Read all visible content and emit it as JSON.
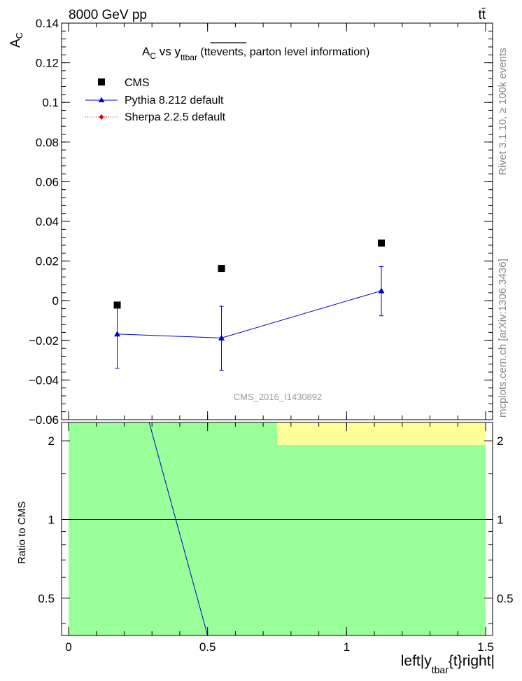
{
  "header": {
    "energy_label": "8000 GeV pp",
    "process_label": "tt̄"
  },
  "side_labels": {
    "rivet": "Rivet 3.1.10, ≥ 100k events",
    "mcplots": "mcplots.cern.ch [arXiv:1306.3436]"
  },
  "watermark": "CMS_2016_I1430892",
  "title": {
    "main": "A",
    "main_sub": "C",
    "vs": " vs y",
    "vs_sub": "ttbar",
    "paren_open": " (tt",
    "overlined": "events,",
    "paren_rest": " parton level information)"
  },
  "yaxis": {
    "label": "A",
    "label_sub": "C"
  },
  "ratio_yaxis_label": "Ratio to CMS",
  "xaxis": {
    "label_a": "left|y",
    "label_sub": "tbar",
    "label_b": "{t}right|"
  },
  "legend": [
    {
      "name": "CMS",
      "color": "#000000"
    },
    {
      "name": "Pythia 8.212 default",
      "color": "#0000cc"
    },
    {
      "name": "Sherpa 2.2.5 default",
      "color": "#dd0000"
    }
  ],
  "chart_data": [
    {
      "type": "scatter",
      "panel": "main",
      "xlim": [
        0,
        1.5
      ],
      "ylim": [
        -0.06,
        0.14
      ],
      "yticks": [
        -0.06,
        -0.04,
        -0.02,
        0,
        0.02,
        0.04,
        0.06,
        0.08,
        0.1,
        0.12,
        0.14
      ],
      "ytick_labels": [
        "−0.06",
        "−0.04",
        "−0.02",
        "0",
        "0.02",
        "0.04",
        "0.06",
        "0.08",
        "0.1",
        "0.12",
        "0.14"
      ],
      "series": [
        {
          "name": "CMS",
          "style": "square-marker",
          "color": "#000000",
          "x": [
            0.175,
            0.55,
            1.125
          ],
          "y": [
            -0.0022,
            0.0163,
            0.0291
          ],
          "yerr": [
            0.0015,
            0.0005,
            0.0005
          ]
        },
        {
          "name": "Pythia 8.212 default",
          "style": "line-triangle",
          "color": "#0000cc",
          "x": [
            0.175,
            0.55,
            1.125
          ],
          "y": [
            -0.0168,
            -0.0188,
            0.005
          ],
          "yerr_up": [
            0.016,
            0.016,
            0.0122
          ],
          "yerr_down": [
            0.0172,
            0.0163,
            0.0126
          ],
          "xbins": [
            [
              0,
              0.35
            ],
            [
              0.35,
              0.75
            ],
            [
              0.75,
              1.5
            ]
          ]
        },
        {
          "name": "Sherpa 2.2.5 default",
          "style": "dotted-diamond",
          "color": "#dd0000",
          "x": [],
          "y": []
        }
      ]
    },
    {
      "type": "line",
      "panel": "ratio",
      "xlim": [
        0,
        1.5
      ],
      "ylim": [
        0.36,
        2.35
      ],
      "yscale": "log",
      "yticks": [
        0.5,
        1,
        2
      ],
      "ytick_labels": [
        "0.5",
        "1",
        "2"
      ],
      "xticks": [
        0,
        0.5,
        1,
        1.5
      ],
      "xtick_labels": [
        "0",
        "0.5",
        "1",
        "1.5"
      ],
      "reference_line": 1,
      "bands": [
        {
          "name": "CMS uncertainty bin 1",
          "color": "#99ff99",
          "x": [
            0,
            0.35
          ],
          "y": [
            0.01,
            100
          ]
        },
        {
          "name": "CMS uncertainty bin 2",
          "color": "#99ff99",
          "x": [
            0.35,
            0.75
          ],
          "y": [
            0.01,
            100
          ]
        },
        {
          "name": "CMS uncertainty bin 3",
          "color": "#99ff99",
          "x": [
            0.75,
            1.5
          ],
          "y": [
            0.01,
            1.93
          ]
        },
        {
          "name": "CMS stat uncertainty bin 3",
          "color": "#ffff99",
          "x": [
            0.75,
            1.5
          ],
          "y": [
            1.93,
            100
          ]
        }
      ],
      "series": [
        {
          "name": "Pythia 8.212 / CMS",
          "color": "#0000cc",
          "x": [
            0.29,
            0.5
          ],
          "y": [
            2.35,
            0.36
          ]
        }
      ]
    }
  ]
}
